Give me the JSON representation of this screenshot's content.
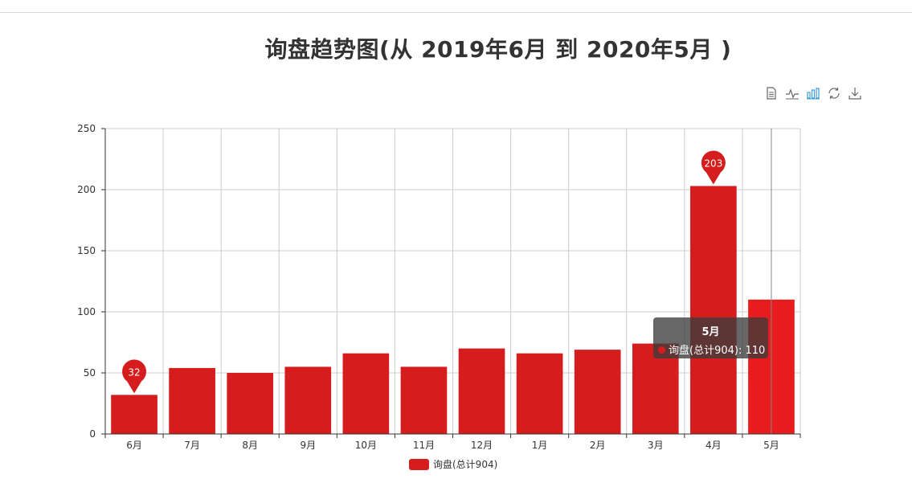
{
  "title": "询盘趋势图(从 2019年6月 到 2020年5月 )",
  "toolbox": [
    {
      "name": "data-view-icon"
    },
    {
      "name": "line-chart-icon"
    },
    {
      "name": "bar-chart-icon"
    },
    {
      "name": "restore-icon"
    },
    {
      "name": "save-image-icon"
    }
  ],
  "colors": {
    "bar": "#d51d1d",
    "bar_highlight": "#e81c1c",
    "grid": "#cccccc",
    "active_icon": "#3a9bd5",
    "icon": "#666666"
  },
  "chart_data": {
    "type": "bar",
    "categories": [
      "6月",
      "7月",
      "8月",
      "9月",
      "10月",
      "11月",
      "12月",
      "1月",
      "2月",
      "3月",
      "4月",
      "5月"
    ],
    "series": [
      {
        "name": "询盘(总计904)",
        "values": [
          32,
          54,
          50,
          55,
          66,
          55,
          70,
          66,
          69,
          74,
          203,
          110
        ]
      }
    ],
    "ylim": [
      0,
      250
    ],
    "yticks": [
      0,
      50,
      100,
      150,
      200,
      250
    ],
    "markers": [
      {
        "label": "32",
        "category": "6月",
        "value": 32
      },
      {
        "label": "203",
        "category": "4月",
        "value": 203
      }
    ],
    "grid": true,
    "legend_position": "bottom-center"
  },
  "tooltip": {
    "title": "5月",
    "text": "询盘(总计904): 110"
  },
  "legend": {
    "label": "询盘(总计904)"
  }
}
